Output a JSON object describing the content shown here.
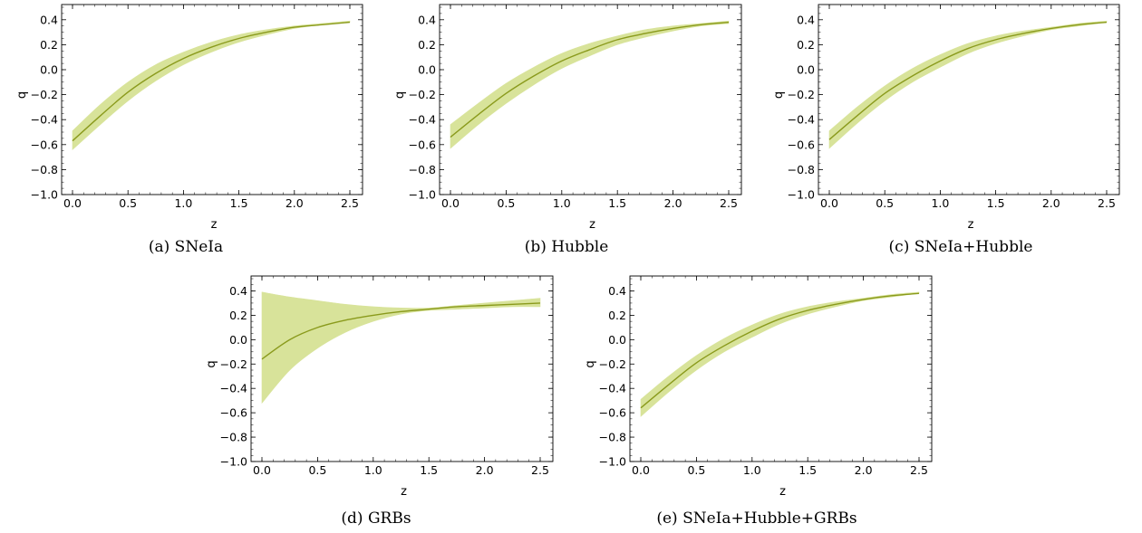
{
  "chart_data": [
    {
      "type": "line",
      "caption": "(a) SNeIa",
      "xlabel": "z",
      "ylabel": "q",
      "xlim": [
        0,
        2.5
      ],
      "ylim": [
        -1.0,
        0.5
      ],
      "x_ticks": [
        "0.0",
        "0.5",
        "1.0",
        "1.5",
        "2.0",
        "2.5"
      ],
      "y_ticks": [
        "−1.0",
        "−0.8",
        "−0.6",
        "−0.4",
        "−0.2",
        "0.0",
        "0.2",
        "0.4"
      ],
      "series": [
        {
          "x": [
            0.0,
            0.25,
            0.5,
            0.75,
            1.0,
            1.25,
            1.5,
            1.75,
            2.0,
            2.25,
            2.5
          ],
          "y": [
            -0.57,
            -0.37,
            -0.18,
            -0.03,
            0.09,
            0.18,
            0.25,
            0.3,
            0.34,
            0.36,
            0.38
          ],
          "lower": [
            -0.64,
            -0.44,
            -0.25,
            -0.09,
            0.04,
            0.14,
            0.22,
            0.28,
            0.33,
            0.36,
            0.38
          ],
          "upper": [
            -0.49,
            -0.28,
            -0.1,
            0.04,
            0.14,
            0.22,
            0.28,
            0.32,
            0.35,
            0.37,
            0.39
          ]
        }
      ],
      "colors": {
        "line": "#8a9a1c",
        "band": "#d8e39a"
      }
    },
    {
      "type": "line",
      "caption": "(b) Hubble",
      "xlabel": "z",
      "ylabel": "q",
      "xlim": [
        0,
        2.5
      ],
      "ylim": [
        -1.0,
        0.5
      ],
      "x_ticks": [
        "0.0",
        "0.5",
        "1.0",
        "1.5",
        "2.0",
        "2.5"
      ],
      "y_ticks": [
        "−1.0",
        "−0.8",
        "−0.6",
        "−0.4",
        "−0.2",
        "0.0",
        "0.2",
        "0.4"
      ],
      "series": [
        {
          "x": [
            0.0,
            0.25,
            0.5,
            0.75,
            1.0,
            1.25,
            1.5,
            1.75,
            2.0,
            2.25,
            2.5
          ],
          "y": [
            -0.54,
            -0.36,
            -0.19,
            -0.05,
            0.07,
            0.16,
            0.24,
            0.29,
            0.33,
            0.36,
            0.38
          ],
          "lower": [
            -0.63,
            -0.44,
            -0.27,
            -0.12,
            0.01,
            0.11,
            0.2,
            0.26,
            0.31,
            0.35,
            0.37
          ],
          "upper": [
            -0.44,
            -0.27,
            -0.11,
            0.02,
            0.13,
            0.21,
            0.27,
            0.32,
            0.35,
            0.37,
            0.39
          ]
        }
      ],
      "colors": {
        "line": "#8a9a1c",
        "band": "#d8e39a"
      }
    },
    {
      "type": "line",
      "caption": "(c) SNeIa+Hubble",
      "xlabel": "z",
      "ylabel": "q",
      "xlim": [
        0,
        2.5
      ],
      "ylim": [
        -1.0,
        0.5
      ],
      "x_ticks": [
        "0.0",
        "0.5",
        "1.0",
        "1.5",
        "2.0",
        "2.5"
      ],
      "y_ticks": [
        "−1.0",
        "−0.8",
        "−0.6",
        "−0.4",
        "−0.2",
        "0.0",
        "0.2",
        "0.4"
      ],
      "series": [
        {
          "x": [
            0.0,
            0.25,
            0.5,
            0.75,
            1.0,
            1.25,
            1.5,
            1.75,
            2.0,
            2.25,
            2.5
          ],
          "y": [
            -0.56,
            -0.37,
            -0.19,
            -0.05,
            0.07,
            0.17,
            0.24,
            0.29,
            0.33,
            0.36,
            0.38
          ],
          "lower": [
            -0.63,
            -0.43,
            -0.25,
            -0.1,
            0.02,
            0.13,
            0.21,
            0.27,
            0.32,
            0.35,
            0.38
          ],
          "upper": [
            -0.49,
            -0.3,
            -0.13,
            0.01,
            0.12,
            0.21,
            0.27,
            0.31,
            0.34,
            0.37,
            0.39
          ]
        }
      ],
      "colors": {
        "line": "#8a9a1c",
        "band": "#d8e39a"
      }
    },
    {
      "type": "line",
      "caption": "(d) GRBs",
      "xlabel": "z",
      "ylabel": "q",
      "xlim": [
        0,
        2.5
      ],
      "ylim": [
        -1.0,
        0.5
      ],
      "x_ticks": [
        "0.0",
        "0.5",
        "1.0",
        "1.5",
        "2.0",
        "2.5"
      ],
      "y_ticks": [
        "−1.0",
        "−0.8",
        "−0.6",
        "−0.4",
        "−0.2",
        "0.0",
        "0.2",
        "0.4"
      ],
      "series": [
        {
          "x": [
            0.0,
            0.25,
            0.5,
            0.75,
            1.0,
            1.25,
            1.5,
            1.75,
            2.0,
            2.25,
            2.5
          ],
          "y": [
            -0.16,
            0.0,
            0.1,
            0.16,
            0.2,
            0.23,
            0.25,
            0.27,
            0.28,
            0.29,
            0.3
          ],
          "lower": [
            -0.52,
            -0.25,
            -0.07,
            0.06,
            0.15,
            0.21,
            0.24,
            0.25,
            0.26,
            0.27,
            0.27
          ],
          "upper": [
            0.39,
            0.35,
            0.32,
            0.29,
            0.27,
            0.26,
            0.26,
            0.28,
            0.3,
            0.32,
            0.34
          ]
        }
      ],
      "colors": {
        "line": "#8a9a1c",
        "band": "#d8e39a"
      }
    },
    {
      "type": "line",
      "caption": "(e) SNeIa+Hubble+GRBs",
      "xlabel": "z",
      "ylabel": "q",
      "xlim": [
        0,
        2.5
      ],
      "ylim": [
        -1.0,
        0.5
      ],
      "x_ticks": [
        "0.0",
        "0.5",
        "1.0",
        "1.5",
        "2.0",
        "2.5"
      ],
      "y_ticks": [
        "−1.0",
        "−0.8",
        "−0.6",
        "−0.4",
        "−0.2",
        "0.0",
        "0.2",
        "0.4"
      ],
      "series": [
        {
          "x": [
            0.0,
            0.25,
            0.5,
            0.75,
            1.0,
            1.25,
            1.5,
            1.75,
            2.0,
            2.25,
            2.5
          ],
          "y": [
            -0.56,
            -0.37,
            -0.19,
            -0.05,
            0.07,
            0.17,
            0.24,
            0.29,
            0.33,
            0.36,
            0.38
          ],
          "lower": [
            -0.63,
            -0.43,
            -0.25,
            -0.1,
            0.02,
            0.13,
            0.21,
            0.27,
            0.32,
            0.35,
            0.38
          ],
          "upper": [
            -0.49,
            -0.3,
            -0.13,
            0.01,
            0.12,
            0.21,
            0.27,
            0.31,
            0.34,
            0.37,
            0.39
          ]
        }
      ],
      "colors": {
        "line": "#8a9a1c",
        "band": "#d8e39a"
      }
    }
  ]
}
